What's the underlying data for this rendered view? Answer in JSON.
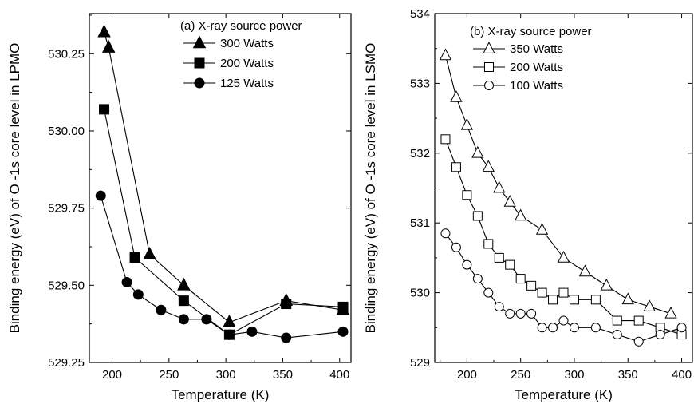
{
  "chart_data": [
    {
      "type": "line",
      "legend_title": "(a) X-ray source power",
      "xlabel": "Temperature (K)",
      "ylabel": "Binding energy (eV) of O -1s core level in LPMO",
      "xlim": [
        180,
        410
      ],
      "ylim": [
        529.25,
        530.38
      ],
      "xticks": [
        200,
        250,
        300,
        350,
        400
      ],
      "yticks": [
        529.25,
        529.5,
        529.75,
        530.0,
        530.25
      ],
      "ytick_labels": [
        "529.25",
        "529.50",
        "529.75",
        "530.00",
        "530.25"
      ],
      "legend_position": "top-right",
      "series": [
        {
          "name": "300 Watts",
          "marker": "triangle",
          "filled": true,
          "x": [
            193,
            197,
            233,
            263,
            303,
            353,
            403
          ],
          "y": [
            530.32,
            530.27,
            529.6,
            529.5,
            529.38,
            529.45,
            529.42
          ]
        },
        {
          "name": "200 Watts",
          "marker": "square",
          "filled": true,
          "x": [
            193,
            220,
            263,
            303,
            353,
            403
          ],
          "y": [
            530.07,
            529.59,
            529.45,
            529.34,
            529.44,
            529.43
          ]
        },
        {
          "name": "125 Watts",
          "marker": "circle",
          "filled": true,
          "x": [
            190,
            213,
            223,
            243,
            263,
            283,
            303,
            323,
            353,
            403
          ],
          "y": [
            529.79,
            529.51,
            529.47,
            529.42,
            529.39,
            529.39,
            529.34,
            529.35,
            529.33,
            529.35
          ]
        }
      ]
    },
    {
      "type": "line",
      "legend_title": "(b) X-ray source power",
      "xlabel": "Temperature (K)",
      "ylabel": "Binding energy (eV) of O -1s core level in LSMO",
      "xlim": [
        170,
        410
      ],
      "ylim": [
        529,
        534
      ],
      "xticks": [
        200,
        250,
        300,
        350,
        400
      ],
      "yticks": [
        529,
        530,
        531,
        532,
        533,
        534
      ],
      "ytick_labels": [
        "529",
        "530",
        "531",
        "532",
        "533",
        "534"
      ],
      "legend_position": "top-right",
      "series": [
        {
          "name": "350 Watts",
          "marker": "triangle",
          "filled": false,
          "x": [
            180,
            190,
            200,
            210,
            220,
            230,
            240,
            250,
            270,
            290,
            310,
            330,
            350,
            370,
            390
          ],
          "y": [
            533.4,
            532.8,
            532.4,
            532.0,
            531.8,
            531.5,
            531.3,
            531.1,
            530.9,
            530.5,
            530.3,
            530.1,
            529.9,
            529.8,
            529.7
          ]
        },
        {
          "name": "200 Watts",
          "marker": "square",
          "filled": false,
          "x": [
            180,
            190,
            200,
            210,
            220,
            230,
            240,
            250,
            260,
            270,
            280,
            290,
            300,
            320,
            340,
            360,
            380,
            400
          ],
          "y": [
            532.2,
            531.8,
            531.4,
            531.1,
            530.7,
            530.5,
            530.4,
            530.2,
            530.1,
            530.0,
            529.9,
            530.0,
            529.9,
            529.9,
            529.6,
            529.6,
            529.5,
            529.4
          ]
        },
        {
          "name": "100 Watts",
          "marker": "circle",
          "filled": false,
          "x": [
            180,
            190,
            200,
            210,
            220,
            230,
            240,
            250,
            260,
            270,
            280,
            290,
            300,
            320,
            340,
            360,
            380,
            400
          ],
          "y": [
            530.85,
            530.65,
            530.4,
            530.2,
            530.0,
            529.8,
            529.7,
            529.7,
            529.7,
            529.5,
            529.5,
            529.6,
            529.5,
            529.5,
            529.4,
            529.3,
            529.4,
            529.5
          ]
        }
      ]
    }
  ]
}
